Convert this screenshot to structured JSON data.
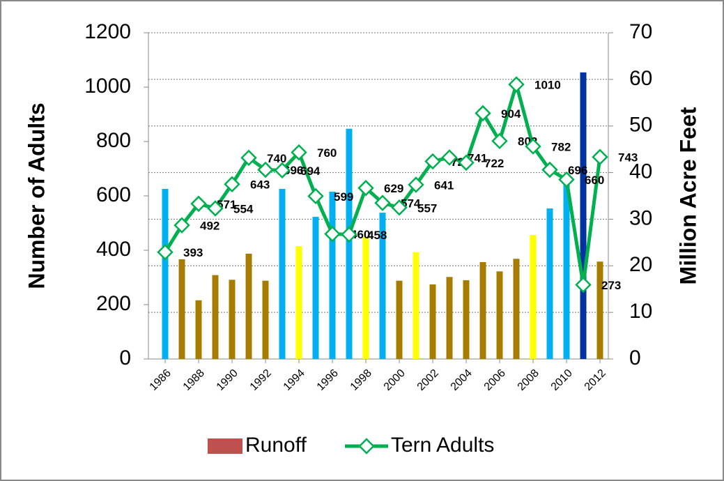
{
  "chart_data": {
    "type": "bar-line",
    "x": [
      1986,
      1987,
      1988,
      1989,
      1990,
      1991,
      1992,
      1993,
      1994,
      1995,
      1996,
      1997,
      1998,
      1999,
      2000,
      2001,
      2002,
      2003,
      2004,
      2005,
      2006,
      2007,
      2008,
      2009,
      2010,
      2011,
      2012
    ],
    "xlim": [
      1985,
      2012.5
    ],
    "xticks": [
      1986,
      1988,
      1990,
      1992,
      1994,
      1996,
      1998,
      2000,
      2002,
      2004,
      2006,
      2008,
      2010,
      2012
    ],
    "y_label": "Number of Adults",
    "y2_label": "Million Acre Feet",
    "ylim": [
      0,
      1200
    ],
    "yticks": [
      0,
      200,
      400,
      600,
      800,
      1000,
      1200
    ],
    "y2lim": [
      0,
      70
    ],
    "y2ticks": [
      0,
      10,
      20,
      30,
      40,
      50,
      60,
      70
    ],
    "grid": true,
    "series": [
      {
        "name": "Runoff",
        "type": "bar",
        "axis": "y2",
        "color": "#c0504d",
        "colors": [
          "#00b0f0",
          "#a67c00",
          "#a67c00",
          "#a67c00",
          "#a67c00",
          "#a67c00",
          "#a67c00",
          "#00b0f0",
          "#ffff00",
          "#00b0f0",
          "#00b0f0",
          "#00b0f0",
          "#ffff00",
          "#00b0f0",
          "#a67c00",
          "#ffff00",
          "#a67c00",
          "#a67c00",
          "#a67c00",
          "#a67c00",
          "#a67c00",
          "#a67c00",
          "#ffff00",
          "#00b0f0",
          "#00b0f0",
          "#0033a0",
          "#a67c00"
        ],
        "values": [
          36.5,
          21.4,
          12.6,
          18,
          17,
          22.6,
          16.8,
          36.5,
          24.2,
          30.5,
          35.9,
          49.4,
          26.2,
          31.4,
          16.8,
          22.9,
          16,
          17.6,
          16.9,
          20.8,
          18.8,
          21.5,
          26.6,
          32.3,
          38.9,
          61.5,
          20.9
        ]
      },
      {
        "name": "Tern Adults",
        "type": "line",
        "color": "#00b050",
        "values": [
          393,
          492,
          571,
          554,
          643,
          740,
          696,
          694,
          760,
          599,
          460,
          458,
          629,
          574,
          557,
          641,
          727,
          741,
          722,
          904,
          802,
          1010,
          782,
          696,
          660,
          273,
          743
        ]
      }
    ]
  }
}
